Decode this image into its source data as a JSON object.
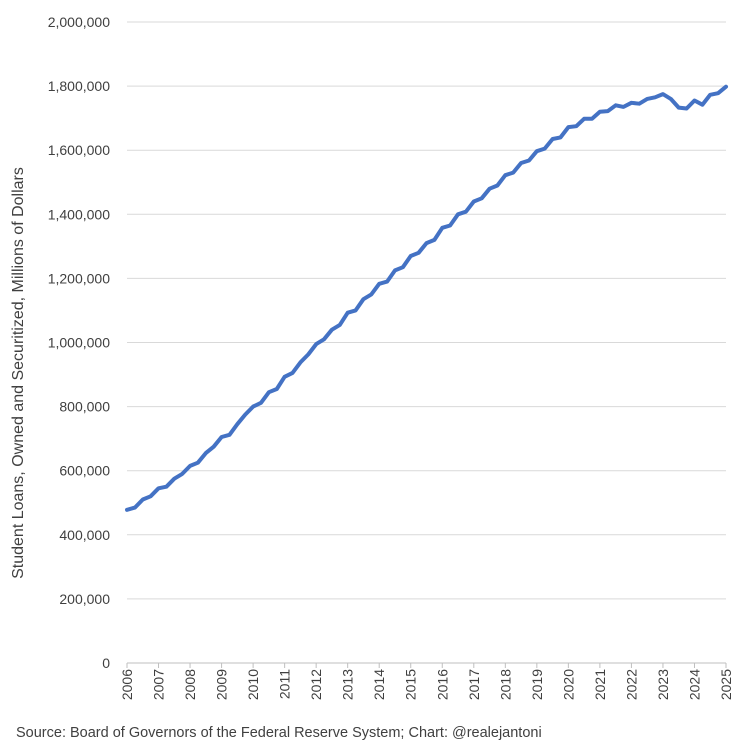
{
  "chart_data": {
    "type": "line",
    "title": "",
    "xlabel": "",
    "ylabel": "Student Loans, Owned and Securitized, Millions of Dollars",
    "source": "Source: Board of Governors of the Federal Reserve System; Chart: @realejantoni",
    "xlim": [
      2006,
      2025
    ],
    "ylim": [
      0,
      2000000
    ],
    "x_ticks": [
      "2006",
      "2007",
      "2008",
      "2009",
      "2010",
      "2011",
      "2012",
      "2013",
      "2014",
      "2015",
      "2016",
      "2017",
      "2018",
      "2019",
      "2020",
      "2021",
      "2022",
      "2023",
      "2024",
      "2025"
    ],
    "y_ticks": [
      "0",
      "200,000",
      "400,000",
      "600,000",
      "800,000",
      "1,000,000",
      "1,200,000",
      "1,400,000",
      "1,600,000",
      "1,800,000",
      "2,000,000"
    ],
    "grid": true,
    "legend": "none",
    "line_color": "#4472c4",
    "grid_color": "#d9d9d9",
    "series": [
      {
        "x": [
          2006.0,
          2006.25,
          2006.5,
          2006.75,
          2007.0,
          2007.25,
          2007.5,
          2007.75,
          2008.0,
          2008.25,
          2008.5,
          2008.75,
          2009.0,
          2009.25,
          2009.5,
          2009.75,
          2010.0,
          2010.25,
          2010.5,
          2010.75,
          2011.0,
          2011.25,
          2011.5,
          2011.75,
          2012.0,
          2012.25,
          2012.5,
          2012.75,
          2013.0,
          2013.25,
          2013.5,
          2013.75,
          2014.0,
          2014.25,
          2014.5,
          2014.75,
          2015.0,
          2015.25,
          2015.5,
          2015.75,
          2016.0,
          2016.25,
          2016.5,
          2016.75,
          2017.0,
          2017.25,
          2017.5,
          2017.75,
          2018.0,
          2018.25,
          2018.5,
          2018.75,
          2019.0,
          2019.25,
          2019.5,
          2019.75,
          2020.0,
          2020.25,
          2020.5,
          2020.75,
          2021.0,
          2021.25,
          2021.5,
          2021.75,
          2022.0,
          2022.25,
          2022.5,
          2022.75,
          2023.0,
          2023.25,
          2023.5,
          2023.75,
          2024.0,
          2024.25,
          2024.5,
          2024.75,
          2025.0
        ],
        "values": [
          478000,
          485000,
          510000,
          520000,
          545000,
          550000,
          575000,
          590000,
          615000,
          625000,
          655000,
          675000,
          705000,
          712000,
          745000,
          775000,
          800000,
          812000,
          845000,
          855000,
          893000,
          905000,
          938000,
          963000,
          995000,
          1010000,
          1040000,
          1055000,
          1093000,
          1100000,
          1135000,
          1150000,
          1183000,
          1190000,
          1225000,
          1235000,
          1270000,
          1280000,
          1310000,
          1320000,
          1358000,
          1365000,
          1400000,
          1408000,
          1440000,
          1450000,
          1480000,
          1490000,
          1522000,
          1530000,
          1560000,
          1568000,
          1597000,
          1605000,
          1635000,
          1640000,
          1672000,
          1675000,
          1698000,
          1698000,
          1720000,
          1722000,
          1740000,
          1735000,
          1748000,
          1745000,
          1760000,
          1765000,
          1775000,
          1760000,
          1733000,
          1730000,
          1755000,
          1742000,
          1773000,
          1778000,
          1798000
        ]
      }
    ]
  }
}
